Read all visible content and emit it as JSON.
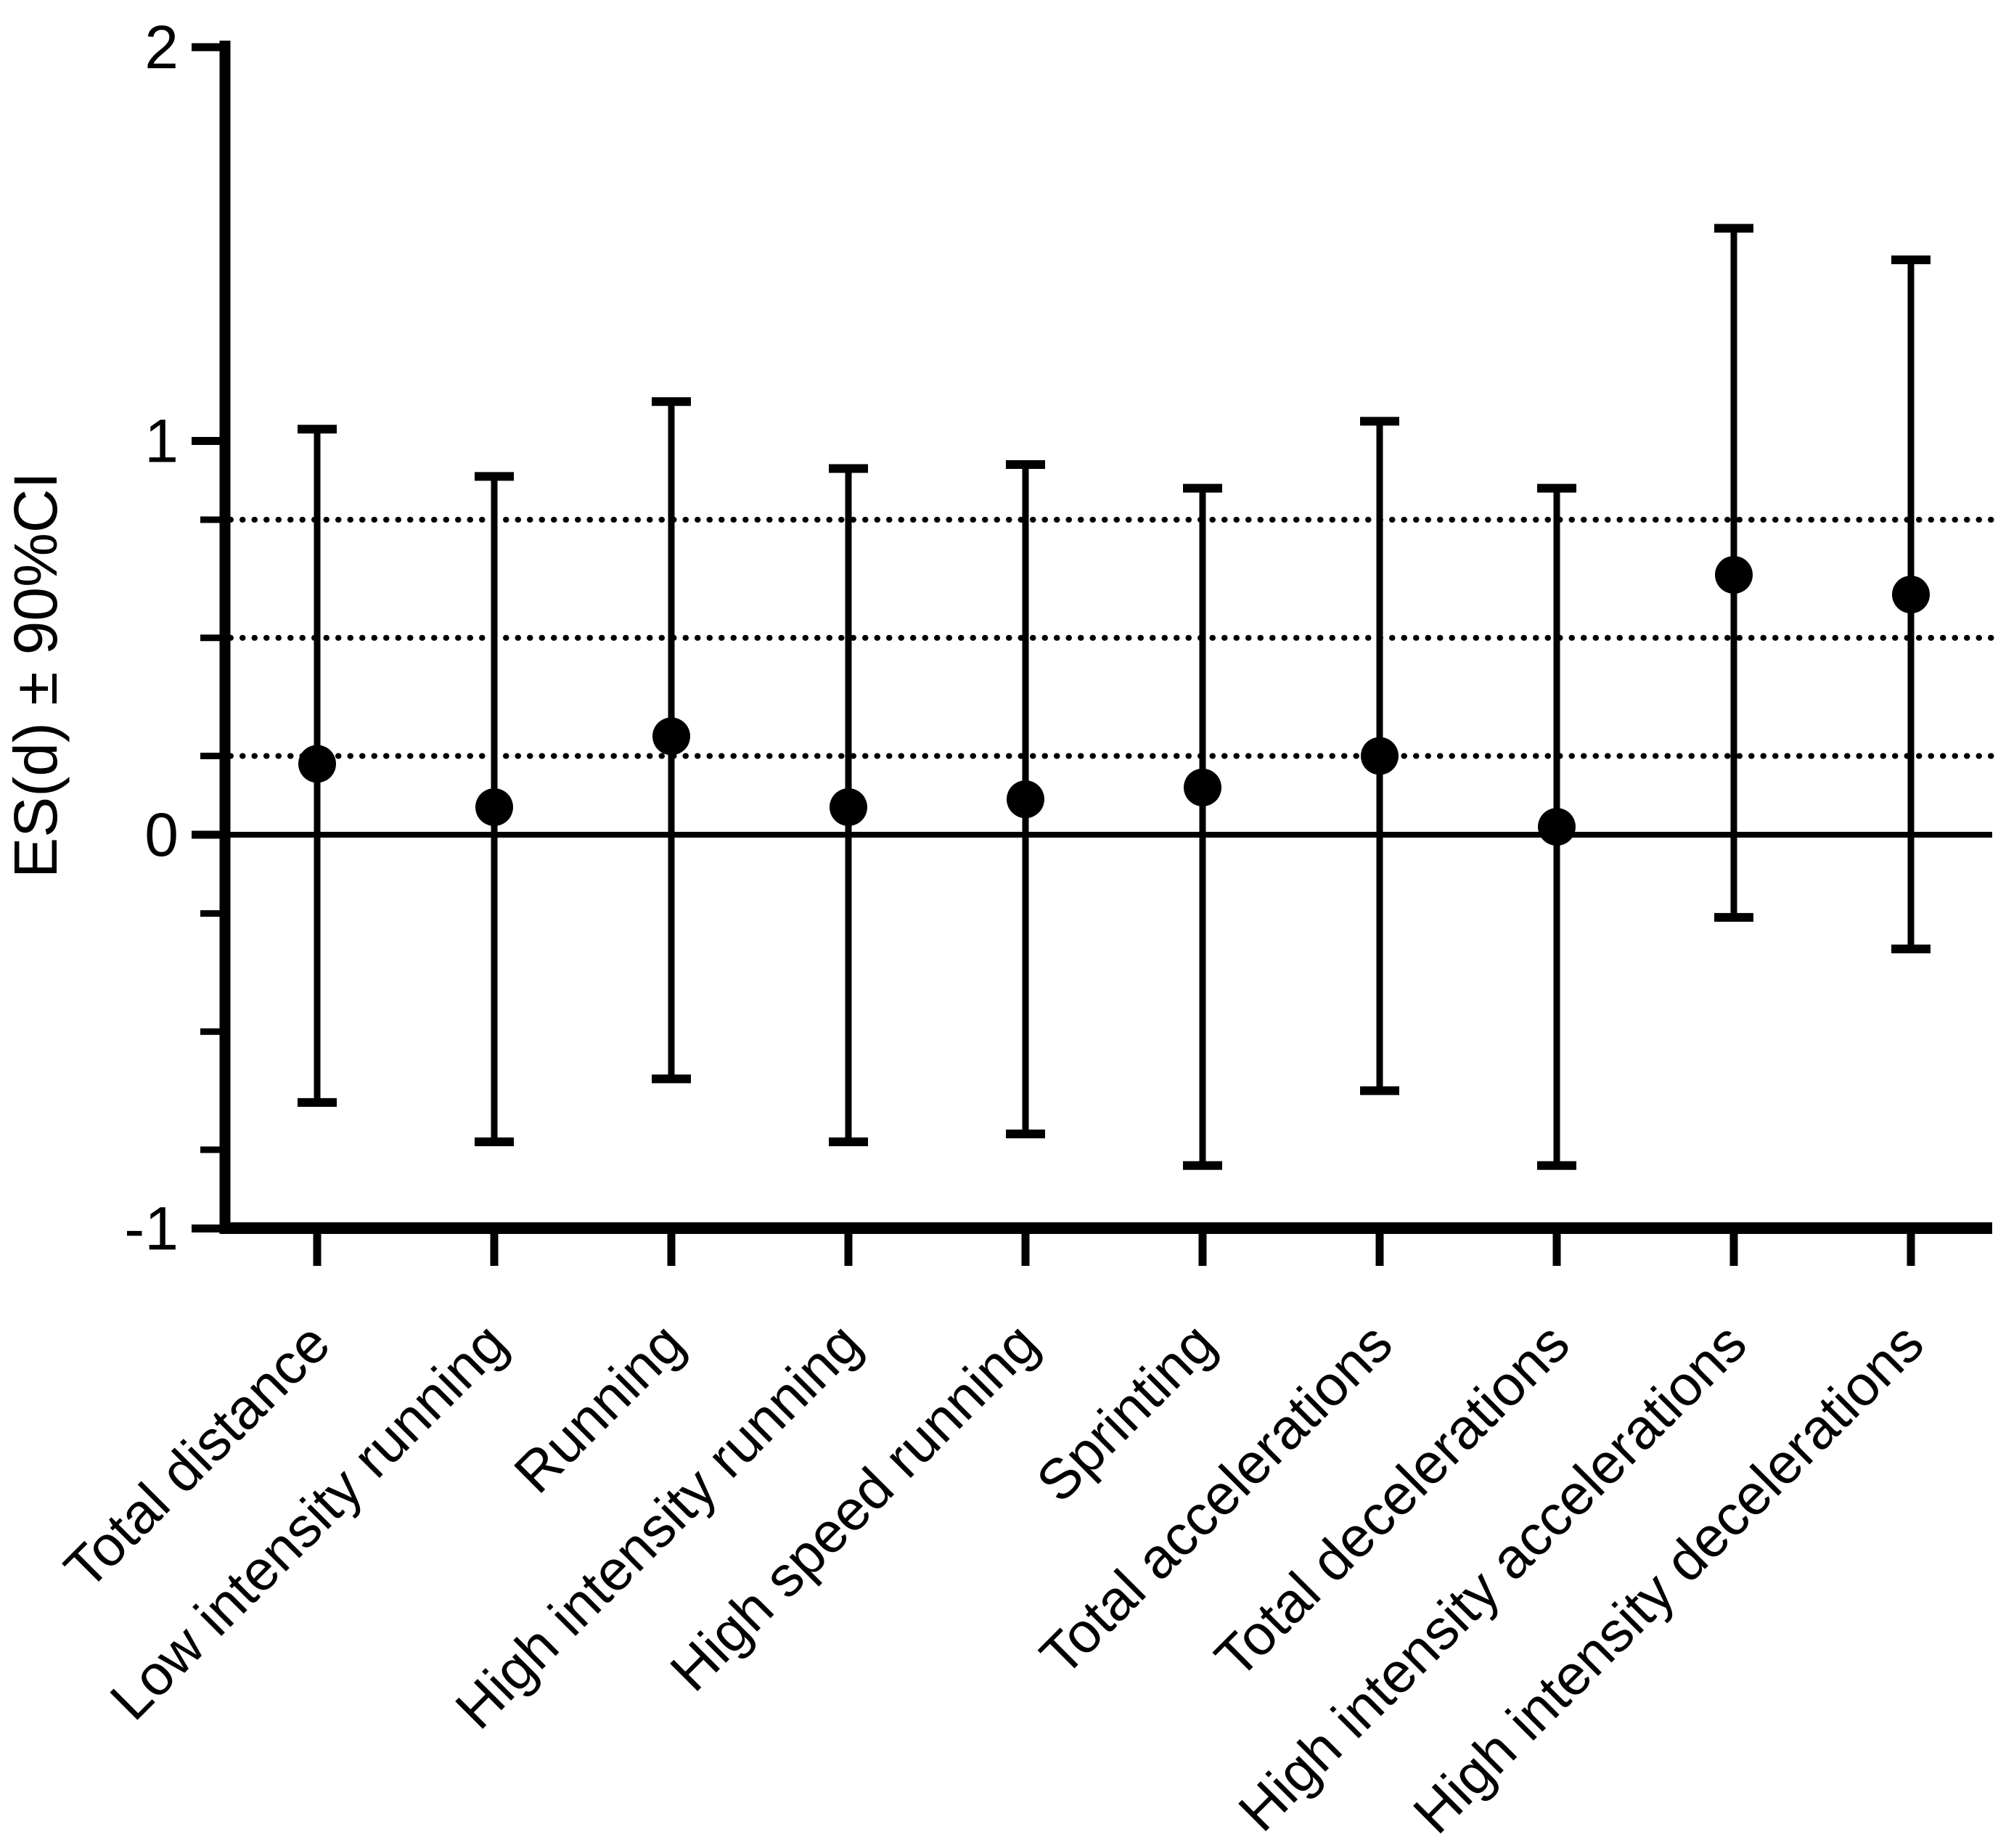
{
  "figure": {
    "background_color": "#ffffff",
    "ink_color": "#000000",
    "title": ""
  },
  "chart_data": {
    "type": "scatter",
    "subtype": "forest-plot-effect-sizes-with-error-bars",
    "title": "",
    "xlabel": "",
    "ylabel": "ES(d) ± 90%CI",
    "ylim": [
      -1,
      2
    ],
    "yticks_major": [
      2,
      1,
      0,
      -1
    ],
    "yticks_minor": [
      0.8,
      0.5,
      0.2,
      -0.2,
      -0.5,
      -0.8
    ],
    "reference_lines": {
      "zero_solid": 0,
      "dotted_thresholds": [
        0.2,
        0.5,
        0.8
      ]
    },
    "grid": "off",
    "legend_position": "none",
    "marker": "filled-circle",
    "error_bars": "90% confidence interval with caps",
    "categories": [
      "Total distance",
      "Low intensity running",
      "Running",
      "High intensity running",
      "High speed running",
      "Sprinting",
      "Total accelerations",
      "Total decelerations",
      "High intensity accelerations",
      "High intensity decelerations"
    ],
    "series": [
      {
        "name": "ES(d)",
        "values": [
          0.18,
          0.07,
          0.25,
          0.07,
          0.09,
          0.12,
          0.2,
          0.02,
          0.66,
          0.61
        ],
        "ci_upper": [
          1.03,
          0.91,
          1.1,
          0.93,
          0.94,
          0.88,
          1.05,
          0.88,
          1.54,
          1.46
        ],
        "ci_lower": [
          -0.68,
          -0.78,
          -0.62,
          -0.78,
          -0.76,
          -0.84,
          -0.65,
          -0.84,
          -0.21,
          -0.29
        ]
      }
    ]
  }
}
